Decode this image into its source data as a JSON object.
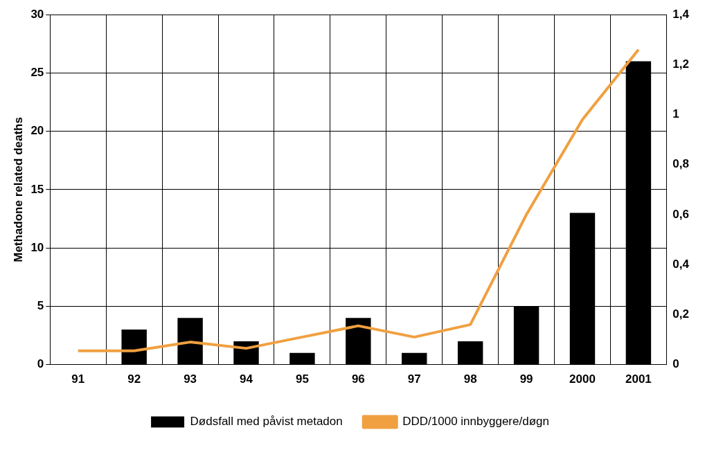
{
  "chart_data": {
    "type": "bar",
    "ylabel": "Methadone related deaths",
    "categories": [
      "91",
      "92",
      "93",
      "94",
      "95",
      "96",
      "97",
      "98",
      "99",
      "2000",
      "2001"
    ],
    "series": [
      {
        "name": "Dødsfall med påvist metadon",
        "color": "#000000",
        "values": [
          0,
          3,
          4,
          2,
          1,
          4,
          1,
          2,
          5,
          13,
          26
        ]
      },
      {
        "name": "DDD/1000 innbyggere/døgn",
        "type": "line",
        "axis": "y2",
        "color": "#f0a040",
        "marker": "none",
        "values": [
          0.055,
          0.055,
          0.09,
          0.065,
          0.11,
          0.155,
          0.11,
          0.16,
          0.6,
          0.98,
          1.26
        ]
      }
    ],
    "ylim": [
      0,
      30
    ],
    "yticks": [
      0,
      5,
      10,
      15,
      20,
      25,
      30
    ],
    "y2lim": [
      0,
      1.4
    ],
    "y2ticks": [
      0,
      {
        "value": 0.2,
        "label": "0,2"
      },
      {
        "value": 0.4,
        "label": "0,4"
      },
      {
        "value": 0.6,
        "label": "0,6"
      },
      {
        "value": 0.8,
        "label": "0,8"
      },
      1,
      {
        "value": 1.2,
        "label": "1,2"
      },
      {
        "value": 1.4,
        "label": "1,4"
      }
    ],
    "grid": true,
    "legend": "bottom"
  }
}
